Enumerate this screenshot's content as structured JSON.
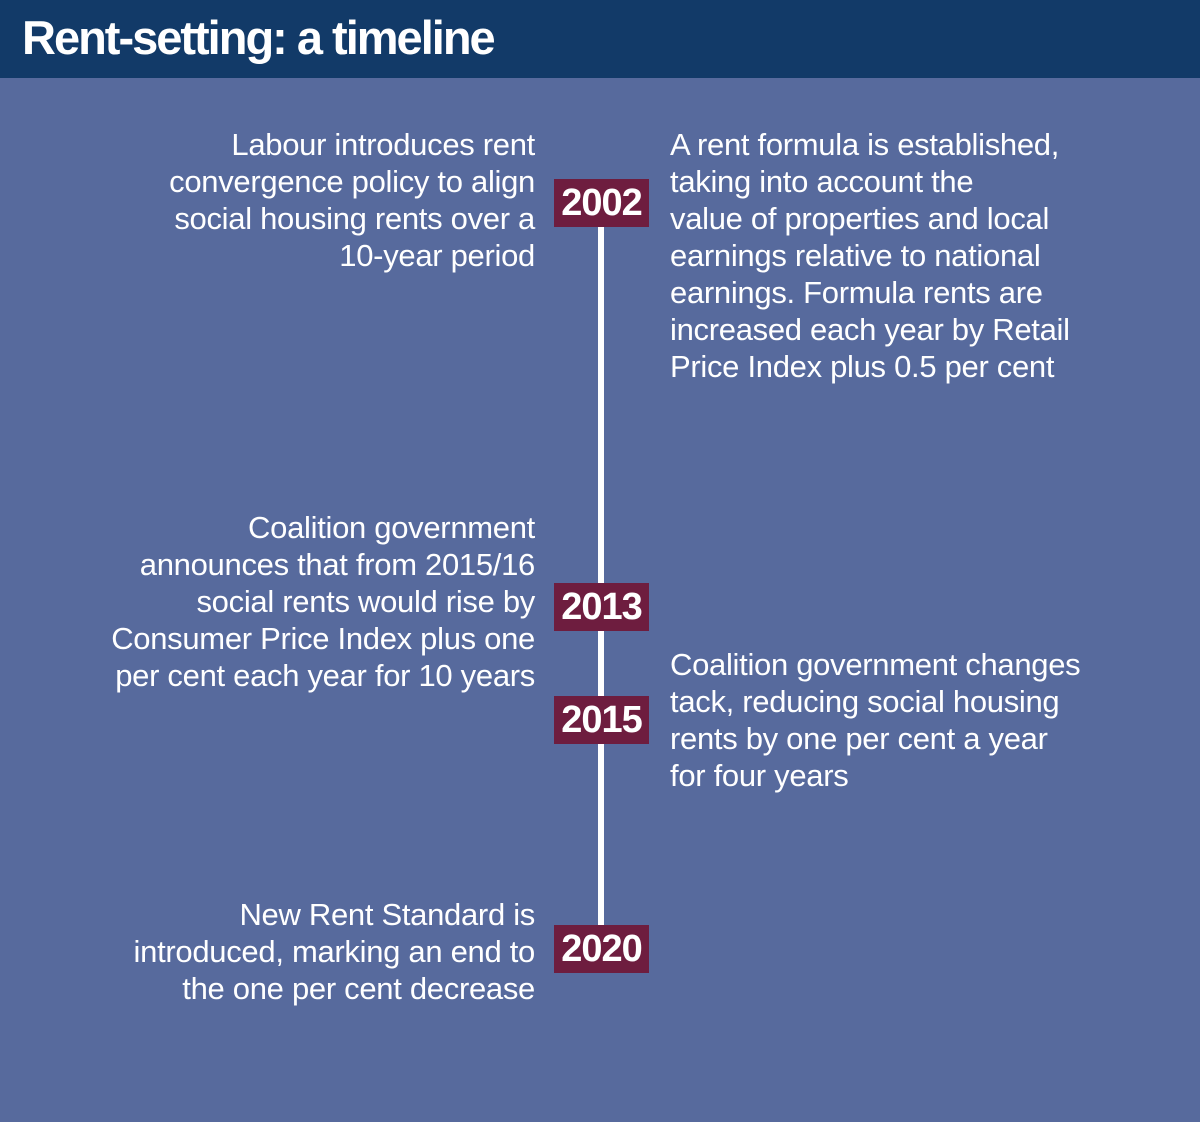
{
  "header": {
    "title": "Rent-setting: a timeline"
  },
  "colors": {
    "header_bg": "#123a68",
    "background": "#576a9d",
    "badge_bg": "#6e1d3f",
    "line_color": "#ffffff",
    "text_color": "#ffffff"
  },
  "timeline": {
    "events": [
      {
        "year": "2002",
        "left": "Labour introduces rent\nconvergence policy to align\nsocial housing rents over a\n10-year period",
        "right": "A rent formula is established,\ntaking into account the\nvalue of properties and local\nearnings relative to national\nearnings. Formula rents are\nincreased each year by Retail\nPrice Index plus 0.5 per cent"
      },
      {
        "year": "2013",
        "left": "Coalition government\nannounces that from 2015/16\nsocial rents would rise by\nConsumer Price Index plus one\nper cent each year for 10 years"
      },
      {
        "year": "2015",
        "right": "Coalition government changes\ntack, reducing social housing\nrents by one per cent a year\nfor four years"
      },
      {
        "year": "2020",
        "left": "New Rent Standard is\nintroduced, marking an end to\nthe one per cent decrease"
      }
    ]
  }
}
